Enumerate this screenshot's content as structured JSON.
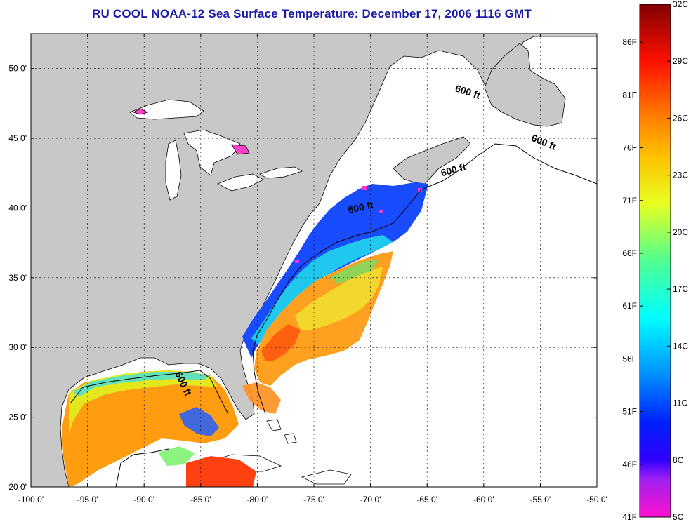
{
  "title": "RU COOL  NOAA-12  Sea Surface Temperature:  December 17, 2006 1116 GMT",
  "map": {
    "x_axis": {
      "range": [
        -100,
        -50
      ],
      "ticks": [
        {
          "value": -100,
          "label": "-100 0'"
        },
        {
          "value": -95,
          "label": "-95 0'"
        },
        {
          "value": -90,
          "label": "-90 0'"
        },
        {
          "value": -85,
          "label": "-85 0'"
        },
        {
          "value": -80,
          "label": "-80 0'"
        },
        {
          "value": -75,
          "label": "-75 0'"
        },
        {
          "value": -70,
          "label": "-70 0'"
        },
        {
          "value": -65,
          "label": "-65 0'"
        },
        {
          "value": -60,
          "label": "-60 0'"
        },
        {
          "value": -55,
          "label": "-55 0'"
        },
        {
          "value": -50,
          "label": "-50 0'"
        }
      ]
    },
    "y_axis": {
      "range": [
        20,
        52.5
      ],
      "ticks": [
        {
          "value": 20,
          "label": "20 0'"
        },
        {
          "value": 25,
          "label": "25 0'"
        },
        {
          "value": 30,
          "label": "30 0'"
        },
        {
          "value": 35,
          "label": "35 0'"
        },
        {
          "value": 40,
          "label": "40 0'"
        },
        {
          "value": 45,
          "label": "45 0'"
        },
        {
          "value": 50,
          "label": "50 0'"
        }
      ]
    },
    "grid": true,
    "contour_labels": [
      {
        "text": "600 ft",
        "lon": -61.5,
        "lat": 48.1,
        "rotation": 18
      },
      {
        "text": "600 ft",
        "lon": -54.8,
        "lat": 44.5,
        "rotation": 22
      },
      {
        "text": "600 ft",
        "lon": -62.6,
        "lat": 42.5,
        "rotation": -15
      },
      {
        "text": "600 ft",
        "lon": -70.8,
        "lat": 39.8,
        "rotation": -12
      },
      {
        "text": "600 ft",
        "lon": -86.8,
        "lat": 27.3,
        "rotation": 65
      }
    ],
    "colors": {
      "land": "#c8c8c8",
      "no_data": "#ffffff",
      "coast": "#000000"
    }
  },
  "colorbar": {
    "range_c": [
      5,
      32
    ],
    "celsius_labels": [
      {
        "value": 5,
        "label": "5C"
      },
      {
        "value": 8,
        "label": "8C"
      },
      {
        "value": 11,
        "label": "11C"
      },
      {
        "value": 14,
        "label": "14C"
      },
      {
        "value": 17,
        "label": "17C"
      },
      {
        "value": 20,
        "label": "20C"
      },
      {
        "value": 23,
        "label": "23C"
      },
      {
        "value": 26,
        "label": "26C"
      },
      {
        "value": 29,
        "label": "29C"
      },
      {
        "value": 32,
        "label": "32C"
      }
    ],
    "fahrenheit_labels": [
      {
        "value": 41,
        "label": "41F"
      },
      {
        "value": 46,
        "label": "46F"
      },
      {
        "value": 51,
        "label": "51F"
      },
      {
        "value": 56,
        "label": "56F"
      },
      {
        "value": 61,
        "label": "61F"
      },
      {
        "value": 66,
        "label": "66F"
      },
      {
        "value": 71,
        "label": "71F"
      },
      {
        "value": 76,
        "label": "76F"
      },
      {
        "value": 81,
        "label": "81F"
      },
      {
        "value": 86,
        "label": "86F"
      }
    ],
    "stops": [
      {
        "c": 5,
        "color": "#ff10d0"
      },
      {
        "c": 7,
        "color": "#a020f0"
      },
      {
        "c": 8,
        "color": "#3000ff"
      },
      {
        "c": 10,
        "color": "#0020ff"
      },
      {
        "c": 12.5,
        "color": "#0090ff"
      },
      {
        "c": 15.5,
        "color": "#00ffff"
      },
      {
        "c": 18.5,
        "color": "#50ff90"
      },
      {
        "c": 21.5,
        "color": "#e8ff20"
      },
      {
        "c": 24,
        "color": "#ffc000"
      },
      {
        "c": 26,
        "color": "#ff8000"
      },
      {
        "c": 29,
        "color": "#ff1000"
      },
      {
        "c": 32,
        "color": "#800000"
      }
    ]
  }
}
